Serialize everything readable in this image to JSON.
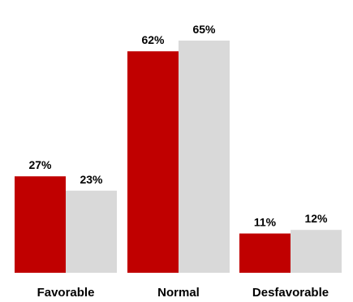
{
  "chart_data": {
    "type": "bar",
    "categories": [
      "Favorable",
      "Normal",
      "Desfavorable"
    ],
    "series": [
      {
        "values": [
          27,
          62,
          11
        ],
        "labels": [
          "27%",
          "62%",
          "11%"
        ],
        "color": "#c00000"
      },
      {
        "values": [
          23,
          65,
          12
        ],
        "labels": [
          "23%",
          "65%",
          "12%"
        ],
        "color": "#d9d9d9"
      }
    ],
    "ylim": [
      0,
      70
    ],
    "grid": false,
    "legend": "none"
  }
}
